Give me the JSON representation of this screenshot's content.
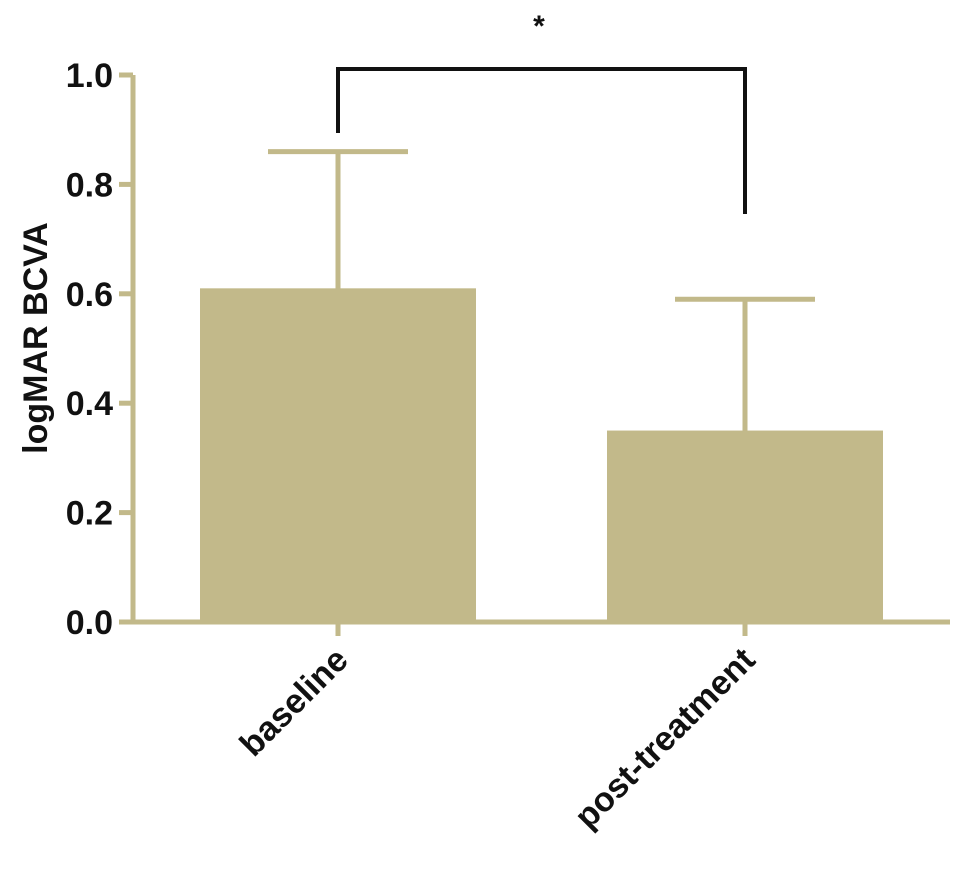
{
  "chart_data": {
    "type": "bar",
    "categories": [
      "baseline",
      "post-treatment"
    ],
    "values": [
      0.61,
      0.35
    ],
    "error_upper": [
      0.86,
      0.59
    ],
    "xlabel": "",
    "ylabel": "logMAR BCVA",
    "ylim": [
      0.0,
      1.0
    ],
    "yticks": [
      "0.0",
      "0.2",
      "0.4",
      "0.6",
      "0.8",
      "1.0"
    ],
    "ytick_values": [
      0.0,
      0.2,
      0.4,
      0.6,
      0.8,
      1.0
    ],
    "grid": false,
    "legend": "none",
    "significance": {
      "label": "*",
      "between": [
        0,
        1
      ]
    },
    "colors": {
      "bar": "#c2b98a",
      "axis": "#c2b98a",
      "error_bar": "#c2b98a",
      "bracket": "#111111"
    }
  }
}
